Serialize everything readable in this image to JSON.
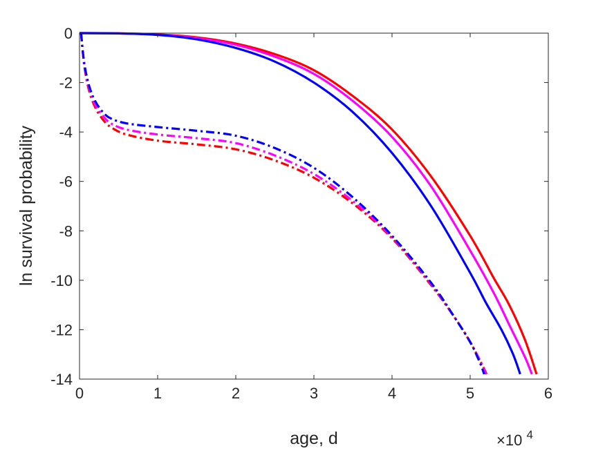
{
  "chart_data": {
    "type": "line",
    "xlabel": "age, d",
    "ylabel": "ln survival probability",
    "x_multiplier": "×10",
    "x_multiplier_exp": "4",
    "xlim": [
      0,
      60000
    ],
    "ylim": [
      -14,
      0
    ],
    "x_ticks": [
      0,
      10000,
      20000,
      30000,
      40000,
      50000,
      60000
    ],
    "x_tick_labels": [
      "0",
      "1",
      "2",
      "3",
      "4",
      "5",
      "6"
    ],
    "y_ticks": [
      0,
      -2,
      -4,
      -6,
      -8,
      -10,
      -12,
      -14
    ],
    "y_tick_labels": [
      "0",
      "-2",
      "-4",
      "-6",
      "-8",
      "-10",
      "-12",
      "-14"
    ],
    "grid": false,
    "series": [
      {
        "color": "#ff0000",
        "style": "solid",
        "x": [
          0,
          5000,
          10000,
          15000,
          20000,
          25000,
          30000,
          35000,
          40000,
          45000,
          50000,
          53000,
          55000,
          57000,
          58500
        ],
        "y": [
          0,
          -0.01,
          -0.05,
          -0.17,
          -0.42,
          -0.85,
          -1.5,
          -2.55,
          -3.9,
          -5.8,
          -8.2,
          -9.9,
          -11.0,
          -12.4,
          -13.8
        ]
      },
      {
        "color": "#ff00ff",
        "style": "solid",
        "x": [
          0,
          5000,
          10000,
          15000,
          20000,
          25000,
          30000,
          35000,
          40000,
          45000,
          50000,
          53000,
          55000,
          57000,
          57900
        ],
        "y": [
          0,
          -0.01,
          -0.06,
          -0.2,
          -0.47,
          -0.95,
          -1.65,
          -2.75,
          -4.2,
          -6.2,
          -8.8,
          -10.5,
          -11.8,
          -13.1,
          -13.8
        ]
      },
      {
        "color": "#0000ff",
        "style": "solid",
        "x": [
          0,
          5000,
          10000,
          15000,
          20000,
          25000,
          30000,
          35000,
          40000,
          45000,
          50000,
          52000,
          54000,
          55500,
          56400
        ],
        "y": [
          0,
          -0.01,
          -0.07,
          -0.25,
          -0.6,
          -1.15,
          -2.0,
          -3.2,
          -4.85,
          -7.0,
          -9.7,
          -10.9,
          -12.0,
          -13.0,
          -13.8
        ]
      },
      {
        "color": "#ff0000",
        "style": "dashdot",
        "x": [
          200,
          600,
          1200,
          2000,
          3000,
          4000,
          6000,
          10000,
          15000,
          20000,
          25000,
          30000,
          35000,
          40000,
          45000,
          48000,
          50000,
          51500,
          52100
        ],
        "y": [
          0,
          -1.3,
          -2.3,
          -3.0,
          -3.5,
          -3.8,
          -4.1,
          -4.35,
          -4.5,
          -4.7,
          -5.15,
          -5.85,
          -6.9,
          -8.3,
          -10.2,
          -11.5,
          -12.5,
          -13.4,
          -13.8
        ]
      },
      {
        "color": "#ff00ff",
        "style": "dashdot",
        "x": [
          200,
          600,
          1200,
          2000,
          3000,
          4000,
          6000,
          10000,
          15000,
          20000,
          25000,
          30000,
          35000,
          40000,
          45000,
          48000,
          50000,
          51500,
          52000
        ],
        "y": [
          0,
          -1.25,
          -2.2,
          -2.9,
          -3.35,
          -3.65,
          -3.9,
          -4.1,
          -4.25,
          -4.45,
          -4.95,
          -5.7,
          -6.8,
          -8.25,
          -10.15,
          -11.5,
          -12.5,
          -13.4,
          -13.8
        ]
      },
      {
        "color": "#0000ff",
        "style": "dashdot",
        "x": [
          200,
          600,
          1200,
          2000,
          3000,
          4000,
          6000,
          10000,
          15000,
          20000,
          25000,
          30000,
          35000,
          40000,
          45000,
          48000,
          50000,
          51200,
          51800
        ],
        "y": [
          0,
          -1.2,
          -2.1,
          -2.75,
          -3.2,
          -3.45,
          -3.65,
          -3.8,
          -3.95,
          -4.15,
          -4.65,
          -5.45,
          -6.65,
          -8.2,
          -10.1,
          -11.5,
          -12.5,
          -13.3,
          -13.8
        ]
      }
    ]
  }
}
